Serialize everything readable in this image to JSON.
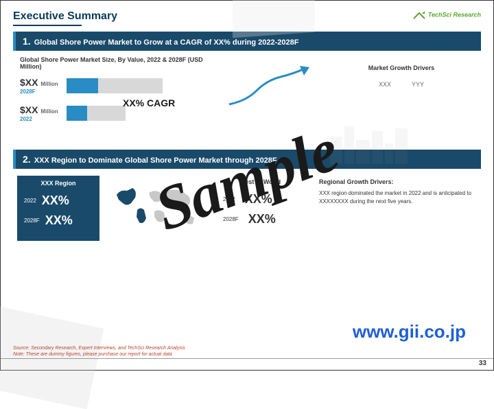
{
  "header": {
    "title": "Executive Summary",
    "logo_text": "TechSci Research"
  },
  "section1": {
    "num": "1.",
    "heading": "Global Shore Power Market to Grow at a CAGR of XX% during 2022-2028F",
    "chart_title": "Global Shore Power Market Size, By Value, 2022 & 2028F (USD Million)",
    "bars": [
      {
        "value": "$XX",
        "unit": "Million",
        "year": "2028F",
        "back_w": 140,
        "front_w": 46
      },
      {
        "value": "$XX",
        "unit": "Million",
        "year": "2022",
        "back_w": 86,
        "front_w": 30
      }
    ],
    "cagr_text": "XX% CAGR",
    "drivers_title": "Market Growth Drivers",
    "drivers": [
      "XXX",
      "YYY"
    ]
  },
  "section2": {
    "num": "2.",
    "heading": "XXX Region to Dominate Global Shore Power Market through 2028F",
    "region": {
      "title": "XXX Region",
      "rows": [
        {
          "year": "2022",
          "val": "XX%"
        },
        {
          "year": "2028F",
          "val": "XX%"
        }
      ]
    },
    "rest": {
      "title": "Rest of World",
      "rows": [
        {
          "year": "2022",
          "val": "XX%"
        },
        {
          "year": "2028F",
          "val": "XX%"
        }
      ]
    },
    "desc_title": "Regional Growth Drivers:",
    "desc_text": "XXX region dominated the market in 2022 and is anticipated to XXXXXXXX during the next five years."
  },
  "footnote": {
    "line1": "Source: Secondary Research, Expert Interviews, and TechSci Research Analysis",
    "line2": "Note: These are dummy figures, please purchase our report for actual data"
  },
  "pagenum": "33",
  "watermark": {
    "sample": "Sample",
    "url": "www.gii.co.jp"
  },
  "colors": {
    "navy": "#1a4a6a",
    "blue": "#2a8cc4",
    "green": "#5aa62e",
    "red": "#b8442a",
    "link": "#1e5fd6"
  }
}
